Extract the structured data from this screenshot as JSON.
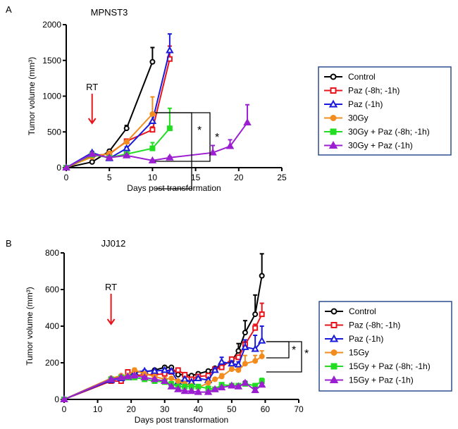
{
  "chart_data": [
    {
      "type": "line",
      "panel_label": "A",
      "title": "MPNST3",
      "xlabel": "Days post transformation",
      "ylabel": "Tumor volume (mm³)",
      "xlim": [
        0,
        25
      ],
      "ylim": [
        0,
        2000
      ],
      "xticks": [
        0,
        5,
        10,
        15,
        20,
        25
      ],
      "yticks": [
        0,
        500,
        1000,
        1500,
        2000
      ],
      "annotation_arrow": {
        "label": "RT",
        "x": 3
      },
      "significance": [
        "*",
        "*"
      ],
      "legend_placement": "right",
      "series": [
        {
          "name": "Control",
          "color": "#000000",
          "marker": "circle-open",
          "x": [
            0,
            3,
            5,
            7,
            10
          ],
          "y": [
            0,
            80,
            230,
            550,
            1480
          ],
          "err": [
            0,
            10,
            20,
            40,
            200
          ]
        },
        {
          "name": "Paz (-8h; -1h)",
          "color": "#e8141b",
          "marker": "square-open",
          "x": [
            0,
            3,
            5,
            7,
            10,
            12
          ],
          "y": [
            0,
            170,
            190,
            370,
            530,
            1520
          ],
          "err": [
            0,
            15,
            15,
            20,
            40,
            180
          ]
        },
        {
          "name": "Paz (-1h)",
          "color": "#1a1adc",
          "marker": "triangle-open",
          "x": [
            0,
            3,
            5,
            7,
            10,
            12
          ],
          "y": [
            0,
            210,
            130,
            270,
            650,
            1640
          ],
          "err": [
            0,
            15,
            10,
            20,
            80,
            230
          ]
        },
        {
          "name": "30Gy",
          "color": "#f28c1e",
          "marker": "circle",
          "x": [
            0,
            3,
            5,
            7,
            10
          ],
          "y": [
            0,
            150,
            200,
            360,
            750
          ],
          "err": [
            0,
            15,
            15,
            20,
            240
          ]
        },
        {
          "name": "30Gy + Paz (-8h; -1h)",
          "color": "#22dd22",
          "marker": "square",
          "x": [
            0,
            3,
            5,
            7,
            10,
            12
          ],
          "y": [
            0,
            180,
            140,
            190,
            270,
            550
          ],
          "err": [
            0,
            15,
            10,
            15,
            80,
            280
          ]
        },
        {
          "name": "30Gy + Paz (-1h)",
          "color": "#9b1fd0",
          "marker": "triangle",
          "x": [
            0,
            3,
            5,
            7,
            10,
            12,
            17,
            19,
            21
          ],
          "y": [
            0,
            190,
            140,
            170,
            100,
            140,
            210,
            300,
            630
          ],
          "err": [
            0,
            15,
            10,
            15,
            10,
            15,
            100,
            90,
            250
          ]
        }
      ]
    },
    {
      "type": "line",
      "panel_label": "B",
      "title": "JJ012",
      "xlabel": "Days post transformation",
      "ylabel": "Tumor volume (mm³)",
      "xlim": [
        0,
        70
      ],
      "ylim": [
        0,
        800
      ],
      "xticks": [
        0,
        10,
        20,
        30,
        40,
        50,
        60,
        70
      ],
      "yticks": [
        0,
        200,
        400,
        600,
        800
      ],
      "annotation_arrow": {
        "label": "RT",
        "x": 14
      },
      "significance": [
        "*",
        "*"
      ],
      "legend_placement": "right",
      "x": [
        0,
        14,
        17,
        19,
        21,
        24,
        27,
        30,
        32,
        34,
        36,
        38,
        40,
        43,
        45,
        47,
        50,
        52,
        54,
        57,
        59
      ],
      "series": [
        {
          "name": "Control",
          "color": "#000000",
          "marker": "circle-open",
          "y": [
            0,
            115,
            120,
            135,
            150,
            150,
            160,
            175,
            175,
            135,
            135,
            130,
            140,
            155,
            170,
            185,
            210,
            265,
            365,
            465,
            675
          ],
          "err": [
            0,
            5,
            5,
            5,
            5,
            5,
            5,
            5,
            5,
            5,
            5,
            5,
            5,
            5,
            5,
            10,
            15,
            40,
            65,
            105,
            120
          ]
        },
        {
          "name": "Paz (-8h; -1h)",
          "color": "#e8141b",
          "marker": "square-open",
          "y": [
            0,
            100,
            100,
            150,
            130,
            135,
            135,
            140,
            150,
            160,
            135,
            110,
            125,
            130,
            165,
            175,
            220,
            230,
            300,
            390,
            465
          ],
          "err": [
            0,
            5,
            5,
            10,
            5,
            5,
            5,
            5,
            5,
            5,
            5,
            5,
            5,
            5,
            5,
            5,
            10,
            10,
            15,
            20,
            60
          ]
        },
        {
          "name": "Paz (-1h)",
          "color": "#1a1adc",
          "marker": "triangle-open",
          "y": [
            0,
            105,
            115,
            120,
            150,
            155,
            155,
            160,
            155,
            95,
            110,
            95,
            115,
            105,
            160,
            205,
            195,
            190,
            285,
            275,
            320
          ],
          "err": [
            0,
            5,
            5,
            5,
            5,
            5,
            5,
            5,
            5,
            5,
            5,
            5,
            5,
            5,
            10,
            25,
            15,
            15,
            40,
            75,
            80
          ]
        },
        {
          "name": "15Gy",
          "color": "#f28c1e",
          "marker": "circle",
          "y": [
            0,
            115,
            130,
            130,
            160,
            140,
            125,
            110,
            115,
            100,
            85,
            75,
            65,
            90,
            110,
            125,
            165,
            160,
            195,
            210,
            235
          ],
          "err": [
            0,
            5,
            5,
            5,
            10,
            5,
            5,
            5,
            5,
            5,
            5,
            5,
            5,
            5,
            5,
            15,
            10,
            10,
            45,
            30,
            30
          ]
        },
        {
          "name": "15Gy + Paz (-8h; -1h)",
          "color": "#22dd22",
          "marker": "square",
          "y": [
            0,
            110,
            120,
            120,
            120,
            110,
            100,
            95,
            85,
            70,
            70,
            70,
            70,
            60,
            55,
            80,
            75,
            75,
            85,
            75,
            100
          ],
          "err": [
            0,
            5,
            5,
            5,
            5,
            5,
            5,
            5,
            5,
            5,
            5,
            5,
            5,
            5,
            5,
            5,
            5,
            5,
            5,
            5,
            15
          ]
        },
        {
          "name": "15Gy + Paz (-1h)",
          "color": "#9b1fd0",
          "marker": "triangle",
          "y": [
            0,
            110,
            120,
            125,
            130,
            120,
            110,
            100,
            70,
            55,
            45,
            45,
            40,
            40,
            55,
            65,
            75,
            70,
            90,
            50,
            80
          ],
          "err": [
            0,
            5,
            5,
            5,
            5,
            5,
            5,
            5,
            5,
            5,
            5,
            5,
            5,
            5,
            5,
            5,
            5,
            5,
            10,
            15,
            10
          ]
        }
      ]
    }
  ]
}
